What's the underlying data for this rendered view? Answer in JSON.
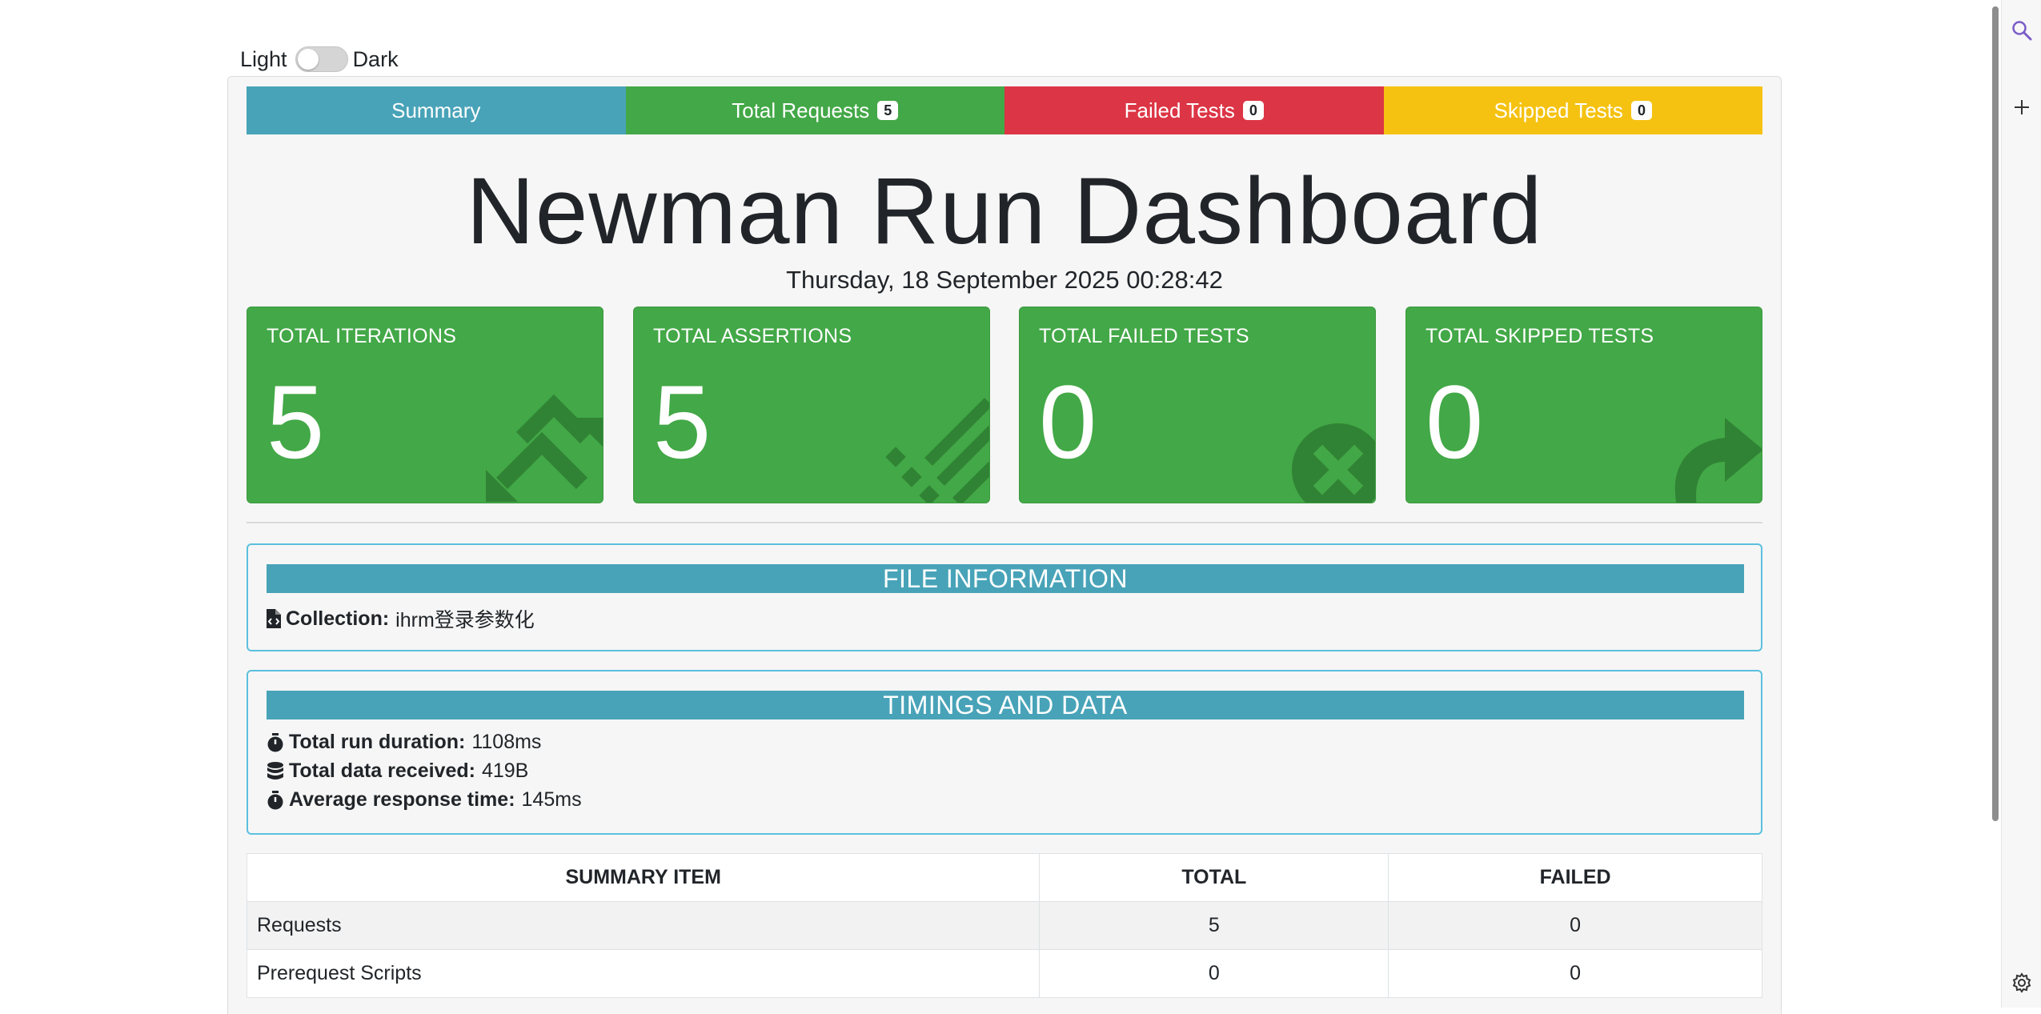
{
  "theme_toggle": {
    "light_label": "Light",
    "dark_label": "Dark"
  },
  "tabs": [
    {
      "label": "Summary",
      "color": "#48a3b8"
    },
    {
      "label": "Total Requests",
      "badge": "5",
      "color": "#43a847"
    },
    {
      "label": "Failed Tests",
      "badge": "0",
      "color": "#dc3545"
    },
    {
      "label": "Skipped Tests",
      "badge": "0",
      "color": "#f5c211"
    }
  ],
  "title": "Newman Run Dashboard",
  "date": "Thursday, 18 September 2025 00:28:42",
  "stat_cards": [
    {
      "label": "TOTAL ITERATIONS",
      "value": "5",
      "icon": "sync-icon"
    },
    {
      "label": "TOTAL ASSERTIONS",
      "value": "5",
      "icon": "tasks-icon"
    },
    {
      "label": "TOTAL FAILED TESTS",
      "value": "0",
      "icon": "times-circle-icon"
    },
    {
      "label": "TOTAL SKIPPED TESTS",
      "value": "0",
      "icon": "share-icon"
    }
  ],
  "file_info": {
    "header": "FILE INFORMATION",
    "collection_label": "Collection:",
    "collection_value": "ihrm登录参数化"
  },
  "timings": {
    "header": "TIMINGS AND DATA",
    "duration_label": "Total run duration:",
    "duration_value": "1108ms",
    "data_label": "Total data received:",
    "data_value": "419B",
    "avg_label": "Average response time:",
    "avg_value": "145ms"
  },
  "summary_table": {
    "headers": [
      "SUMMARY ITEM",
      "TOTAL",
      "FAILED"
    ],
    "rows": [
      {
        "item": "Requests",
        "total": "5",
        "failed": "0"
      },
      {
        "item": "Prerequest Scripts",
        "total": "0",
        "failed": "0"
      }
    ]
  }
}
